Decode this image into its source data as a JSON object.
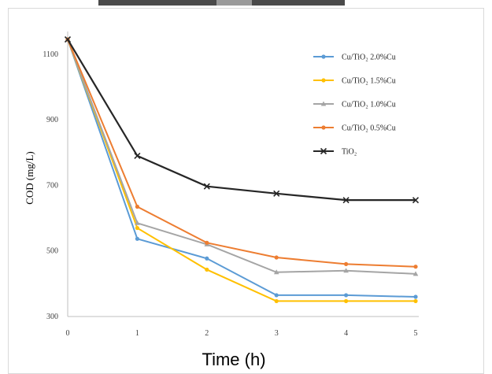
{
  "chart_data": {
    "type": "line",
    "xlabel": "Time (h)",
    "ylabel": "COD (mg/L)",
    "x": [
      0,
      1,
      2,
      3,
      4,
      5
    ],
    "xlim": [
      0,
      5
    ],
    "ylim": [
      300,
      1150
    ],
    "yticks": [
      300,
      500,
      700,
      900,
      1100
    ],
    "grid": false,
    "legend_position": "top-right",
    "series": [
      {
        "name": "Cu/TiO₂ 2.0%Cu",
        "color": "#5b9bd5",
        "marker": "circle",
        "values": [
          1145,
          537,
          477,
          365,
          365,
          360
        ]
      },
      {
        "name": "Cu/TiO₂ 1.5%Cu",
        "color": "#ffc000",
        "marker": "circle",
        "values": [
          1145,
          570,
          443,
          347,
          347,
          347
        ]
      },
      {
        "name": "Cu/TiO₂ 1.0%Cu",
        "color": "#a5a5a5",
        "marker": "triangle",
        "values": [
          1145,
          585,
          520,
          435,
          440,
          430
        ]
      },
      {
        "name": "Cu/TiO₂ 0.5%Cu",
        "color": "#ed7d31",
        "marker": "circle",
        "values": [
          1145,
          635,
          525,
          480,
          460,
          452
        ]
      },
      {
        "name": "TiO₂",
        "color": "#262626",
        "marker": "x",
        "values": [
          1145,
          790,
          697,
          675,
          655,
          655
        ]
      }
    ]
  }
}
